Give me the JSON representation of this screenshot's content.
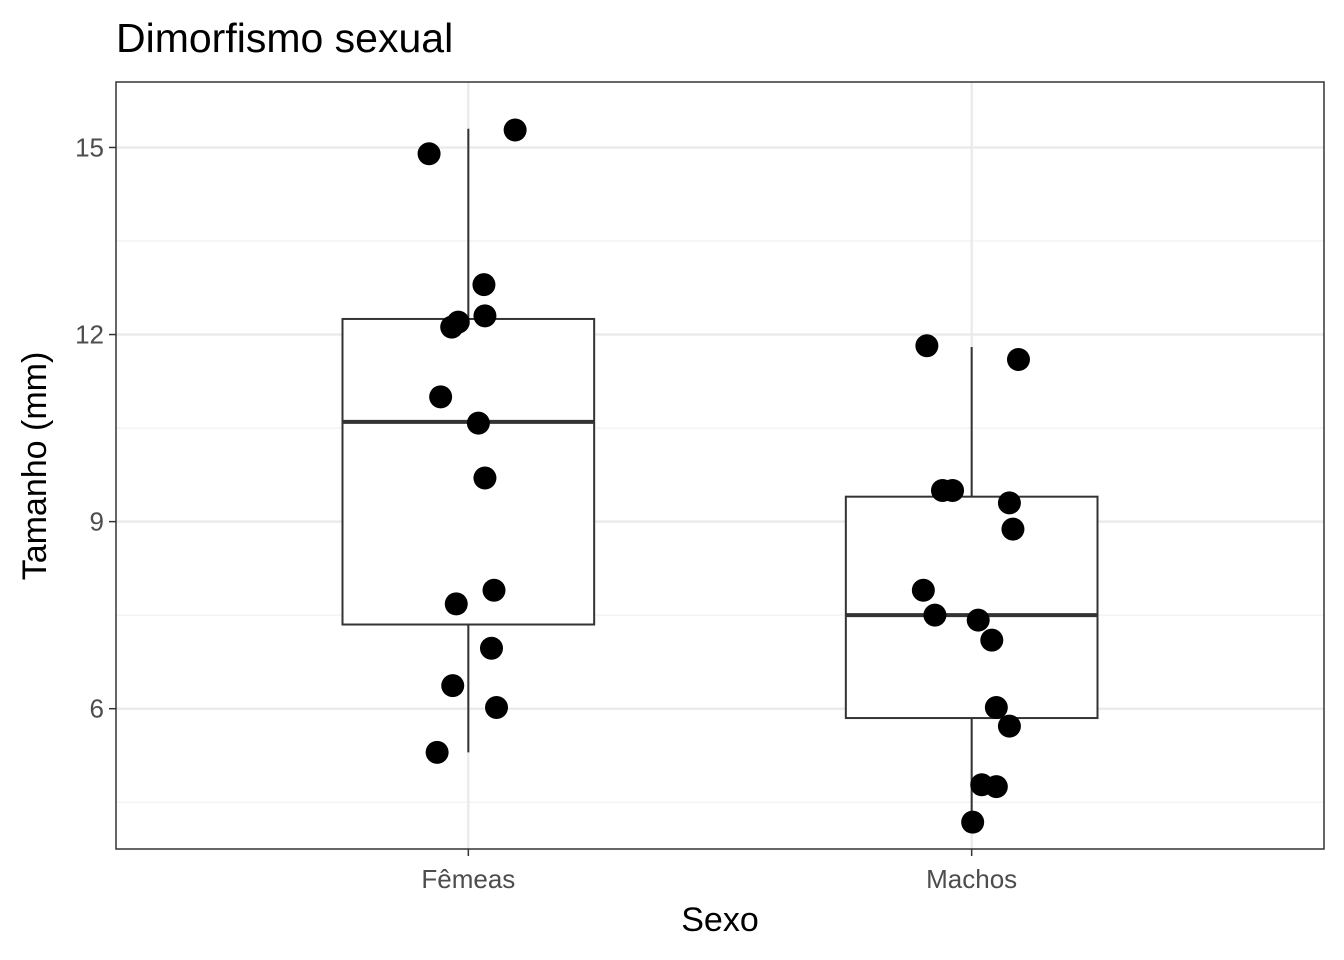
{
  "chart_data": {
    "type": "boxplot",
    "title": "Dimorfismo sexual",
    "xlabel": "Sexo",
    "ylabel": "Tamanho (mm)",
    "categories": [
      "Fêmeas",
      "Machos"
    ],
    "ylim": [
      3.75,
      16.05
    ],
    "yticks": [
      6,
      9,
      12,
      15
    ],
    "yticks_minor": [
      4.5,
      7.5,
      10.5,
      13.5
    ],
    "grid": true,
    "legend": "none",
    "boxes": [
      {
        "category": "Fêmeas",
        "min": 5.3,
        "q1": 7.35,
        "median": 10.6,
        "q3": 12.25,
        "max": 15.3
      },
      {
        "category": "Machos",
        "min": 4.2,
        "q1": 5.85,
        "median": 7.5,
        "q3": 9.4,
        "max": 11.8
      }
    ],
    "points": [
      {
        "category": "Fêmeas",
        "jitter": -0.078,
        "y": 14.9
      },
      {
        "category": "Fêmeas",
        "jitter": 0.093,
        "y": 15.28
      },
      {
        "category": "Fêmeas",
        "jitter": 0.031,
        "y": 12.8
      },
      {
        "category": "Fêmeas",
        "jitter": -0.02,
        "y": 12.2
      },
      {
        "category": "Fêmeas",
        "jitter": -0.033,
        "y": 12.12
      },
      {
        "category": "Fêmeas",
        "jitter": 0.033,
        "y": 12.3
      },
      {
        "category": "Fêmeas",
        "jitter": -0.055,
        "y": 11.0
      },
      {
        "category": "Fêmeas",
        "jitter": 0.02,
        "y": 10.58
      },
      {
        "category": "Fêmeas",
        "jitter": 0.033,
        "y": 9.7
      },
      {
        "category": "Fêmeas",
        "jitter": 0.051,
        "y": 7.9
      },
      {
        "category": "Fêmeas",
        "jitter": -0.024,
        "y": 7.68
      },
      {
        "category": "Fêmeas",
        "jitter": 0.046,
        "y": 6.97
      },
      {
        "category": "Fêmeas",
        "jitter": -0.031,
        "y": 6.37
      },
      {
        "category": "Fêmeas",
        "jitter": 0.056,
        "y": 6.02
      },
      {
        "category": "Fêmeas",
        "jitter": -0.062,
        "y": 5.3
      },
      {
        "category": "Machos",
        "jitter": -0.089,
        "y": 11.82
      },
      {
        "category": "Machos",
        "jitter": 0.093,
        "y": 11.6
      },
      {
        "category": "Machos",
        "jitter": -0.058,
        "y": 9.5
      },
      {
        "category": "Machos",
        "jitter": -0.038,
        "y": 9.5
      },
      {
        "category": "Machos",
        "jitter": 0.075,
        "y": 9.3
      },
      {
        "category": "Machos",
        "jitter": 0.082,
        "y": 8.88
      },
      {
        "category": "Machos",
        "jitter": -0.096,
        "y": 7.9
      },
      {
        "category": "Machos",
        "jitter": -0.073,
        "y": 7.5
      },
      {
        "category": "Machos",
        "jitter": 0.013,
        "y": 7.42
      },
      {
        "category": "Machos",
        "jitter": 0.04,
        "y": 7.1
      },
      {
        "category": "Machos",
        "jitter": 0.049,
        "y": 6.02
      },
      {
        "category": "Machos",
        "jitter": 0.075,
        "y": 5.72
      },
      {
        "category": "Machos",
        "jitter": 0.02,
        "y": 4.78
      },
      {
        "category": "Machos",
        "jitter": 0.049,
        "y": 4.75
      },
      {
        "category": "Machos",
        "jitter": 0.002,
        "y": 4.18
      }
    ]
  },
  "colors": {
    "point": "#000000",
    "box_stroke": "#333333",
    "panel_border": "#333333",
    "grid_major": "#ebebeb",
    "grid_minor": "#f3f3f3",
    "tick_text": "#4d4d4d"
  }
}
